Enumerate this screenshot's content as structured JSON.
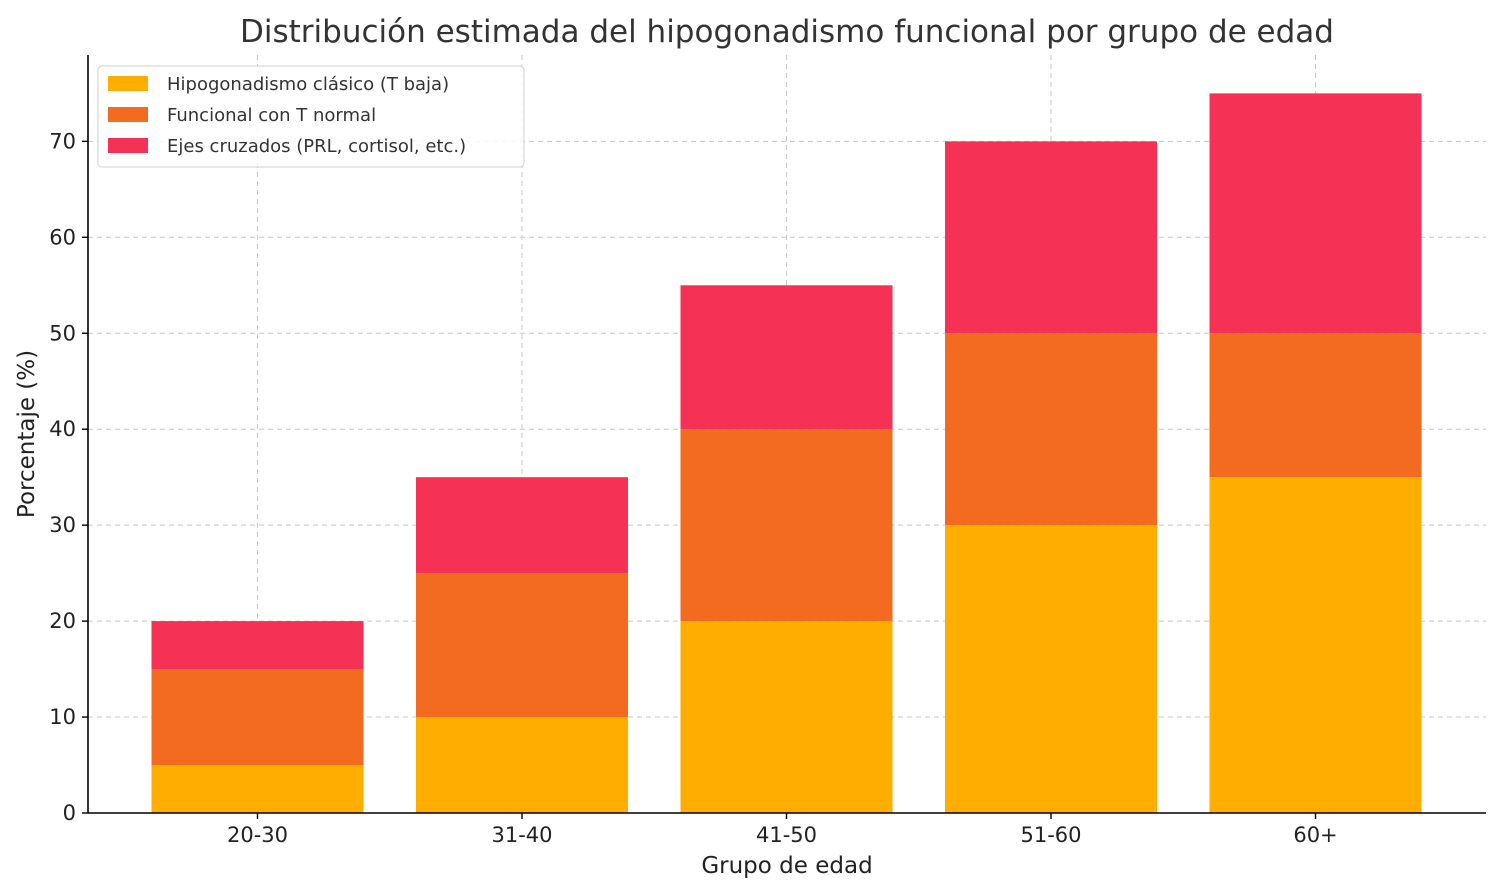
{
  "chart_data": {
    "type": "bar",
    "stacked": true,
    "title": "Distribución estimada del hipogonadismo funcional por grupo de edad",
    "xlabel": "Grupo de edad",
    "ylabel": "Porcentaje (%)",
    "categories": [
      "20-30",
      "31-40",
      "41-50",
      "51-60",
      "60+"
    ],
    "series": [
      {
        "name": "Hipogonadismo clásico (T baja)",
        "color": "#FFAE00",
        "values": [
          5,
          10,
          20,
          30,
          35
        ]
      },
      {
        "name": "Funcional con T normal",
        "color": "#F26B21",
        "values": [
          10,
          15,
          20,
          20,
          15
        ]
      },
      {
        "name": "Ejes cruzados (PRL, cortisol, etc.)",
        "color": "#F53155",
        "values": [
          5,
          10,
          15,
          20,
          25
        ]
      }
    ],
    "ylim": [
      0,
      79
    ],
    "yticks": [
      0,
      10,
      20,
      30,
      40,
      50,
      60,
      70
    ],
    "grid": true,
    "legend_position": "top-left"
  }
}
